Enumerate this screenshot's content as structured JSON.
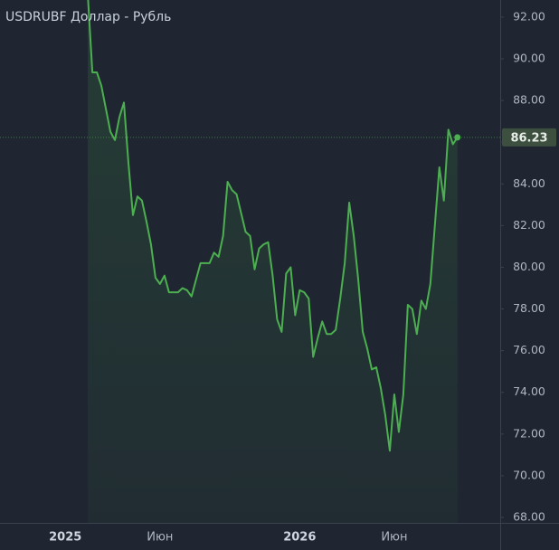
{
  "chart_data": {
    "type": "line",
    "title": "USDRUBF Доллар - Рубль",
    "color": "#4caf50",
    "categories": [
      null,
      null,
      null,
      null,
      null,
      null,
      null,
      null,
      null,
      null,
      null,
      null,
      null,
      null,
      "2025",
      null,
      null,
      null,
      null,
      null,
      null,
      null,
      null,
      null,
      null,
      null,
      null,
      null,
      null,
      null,
      null,
      null,
      null,
      null,
      null,
      "Июн",
      null,
      null,
      null,
      null,
      null,
      null,
      null,
      null,
      null,
      null,
      null,
      null,
      null,
      null,
      null,
      null,
      null,
      null,
      null,
      null,
      null,
      null,
      null,
      null,
      null,
      null,
      null,
      null,
      null,
      null,
      "2026",
      null,
      null,
      null,
      null,
      null,
      null,
      null,
      null,
      null,
      null,
      null,
      null,
      null,
      null,
      null,
      null,
      null,
      null,
      null,
      null,
      "Июн",
      null,
      null,
      null,
      null,
      null,
      null,
      null,
      null,
      null,
      null,
      null,
      null,
      null,
      null,
      null,
      null,
      null,
      null,
      null,
      null,
      null,
      null,
      null
    ],
    "values": [
      null,
      null,
      null,
      null,
      null,
      null,
      null,
      null,
      null,
      null,
      null,
      null,
      null,
      null,
      null,
      null,
      null,
      null,
      null,
      93,
      89.35,
      89.35,
      88.7,
      87.6,
      86.5,
      86.1,
      87.2,
      87.9,
      85.0,
      82.5,
      83.4,
      83.2,
      82.2,
      81.1,
      79.5,
      79.2,
      79.6,
      78.8,
      78.8,
      78.8,
      79.0,
      78.9,
      78.6,
      79.4,
      80.2,
      80.2,
      80.2,
      80.7,
      80.5,
      81.5,
      84.1,
      83.7,
      83.5,
      82.6,
      81.7,
      81.5,
      79.9,
      80.9,
      81.1,
      81.2,
      79.6,
      77.5,
      76.9,
      79.7,
      80.0,
      77.7,
      78.9,
      78.8,
      78.5,
      75.7,
      76.6,
      77.4,
      76.8,
      76.8,
      77.0,
      78.5,
      80.2,
      83.1,
      81.5,
      79.4,
      76.9,
      76.1,
      75.1,
      75.2,
      74.2,
      72.9,
      71.2,
      73.9,
      72.1,
      73.9,
      78.2,
      78.0,
      76.8,
      78.4,
      78.0,
      79.2,
      82.0,
      84.8,
      83.2,
      86.6,
      85.9,
      86.23,
      null,
      null,
      null,
      null,
      null,
      null,
      null,
      null,
      null
    ],
    "ylim": [
      67.74,
      92.82
    ],
    "yticks": [
      {
        "value": 68,
        "label": "68.00"
      },
      {
        "value": 70,
        "label": "70.00"
      },
      {
        "value": 72,
        "label": "72.00"
      },
      {
        "value": 74,
        "label": "74.00"
      },
      {
        "value": 76,
        "label": "76.00"
      },
      {
        "value": 78,
        "label": "78.00"
      },
      {
        "value": 80,
        "label": "80.00"
      },
      {
        "value": 82,
        "label": "82.00"
      },
      {
        "value": 84,
        "label": "84.00"
      },
      {
        "value": 86,
        "label": "86.00"
      },
      {
        "value": 88,
        "label": "88.00"
      },
      {
        "value": 90,
        "label": "90.00"
      },
      {
        "value": 92,
        "label": "92.00"
      }
    ]
  }
}
